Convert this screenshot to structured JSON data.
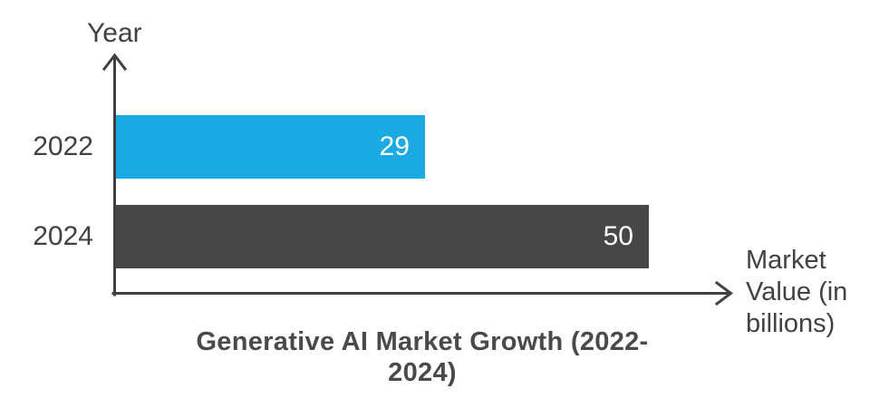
{
  "chart_data": {
    "type": "bar",
    "orientation": "horizontal",
    "title": "Generative AI Market Growth (2022-2024)",
    "xlabel": "Market Value (in billions)",
    "ylabel": "Year",
    "categories": [
      "2022",
      "2024"
    ],
    "values": [
      29,
      50
    ],
    "bar_colors": [
      "#1BAAE1",
      "#474747"
    ],
    "value_label_color": "#FFFFFF",
    "value_label_position": "inside-end",
    "axis_color": "#414141",
    "xlim": [
      0,
      58
    ],
    "grid": false,
    "legend": false
  },
  "display": {
    "title_lines": [
      "Generative AI Market Growth (2022-",
      "2024)"
    ],
    "x_axis_title_lines": [
      "Market",
      "Value (in",
      "billions)"
    ],
    "title_color": "#4A4A4A",
    "text_color": "#414141",
    "background_color": "#FFFFFF"
  }
}
